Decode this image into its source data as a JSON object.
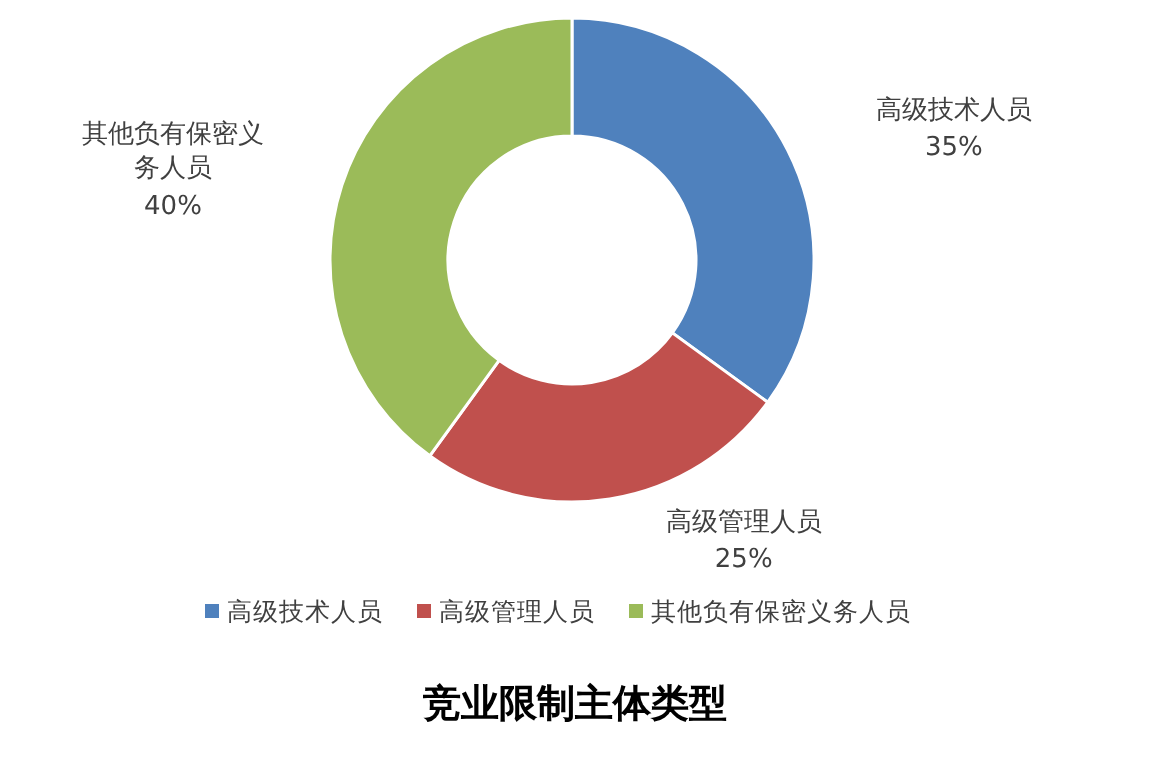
{
  "chart_data": {
    "type": "donut",
    "title": "竞业限制主体类型",
    "categories": [
      "高级技术人员",
      "高级管理人员",
      "其他负有保密义务人员"
    ],
    "values": [
      35,
      25,
      40
    ],
    "value_labels": [
      "35%",
      "25%",
      "40%"
    ],
    "colors": [
      "#4f81bd",
      "#c0504d",
      "#9bbb59"
    ],
    "legend": "bottom"
  }
}
